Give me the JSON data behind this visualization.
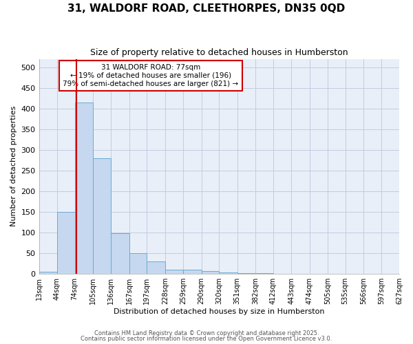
{
  "title": "31, WALDORF ROAD, CLEETHORPES, DN35 0QD",
  "subtitle": "Size of property relative to detached houses in Humberston",
  "xlabel": "Distribution of detached houses by size in Humberston",
  "ylabel": "Number of detached properties",
  "bin_labels": [
    "13sqm",
    "44sqm",
    "74sqm",
    "105sqm",
    "136sqm",
    "167sqm",
    "197sqm",
    "228sqm",
    "259sqm",
    "290sqm",
    "320sqm",
    "351sqm",
    "382sqm",
    "412sqm",
    "443sqm",
    "474sqm",
    "505sqm",
    "535sqm",
    "566sqm",
    "597sqm",
    "627sqm"
  ],
  "bin_edges": [
    13,
    44,
    74,
    105,
    136,
    167,
    197,
    228,
    259,
    290,
    320,
    351,
    382,
    412,
    443,
    474,
    505,
    535,
    566,
    597,
    627
  ],
  "bar_heights": [
    5,
    150,
    415,
    280,
    97,
    50,
    29,
    10,
    10,
    7,
    3,
    2,
    1,
    0,
    0,
    0,
    0,
    0,
    0,
    0
  ],
  "bar_color": "#c5d8f0",
  "bar_edge_color": "#6aaad4",
  "plot_bg_color": "#e8eff8",
  "figure_bg_color": "#ffffff",
  "grid_color": "#c0cce0",
  "red_line_x": 77,
  "property_label": "31 WALDORF ROAD: 77sqm",
  "annotation_line1": "← 19% of detached houses are smaller (196)",
  "annotation_line2": "79% of semi-detached houses are larger (821) →",
  "annotation_box_color": "#ffffff",
  "annotation_border_color": "#cc0000",
  "red_line_color": "#cc0000",
  "ylim": [
    0,
    520
  ],
  "yticks": [
    0,
    50,
    100,
    150,
    200,
    250,
    300,
    350,
    400,
    450,
    500
  ],
  "footer1": "Contains HM Land Registry data © Crown copyright and database right 2025.",
  "footer2": "Contains public sector information licensed under the Open Government Licence v3.0."
}
